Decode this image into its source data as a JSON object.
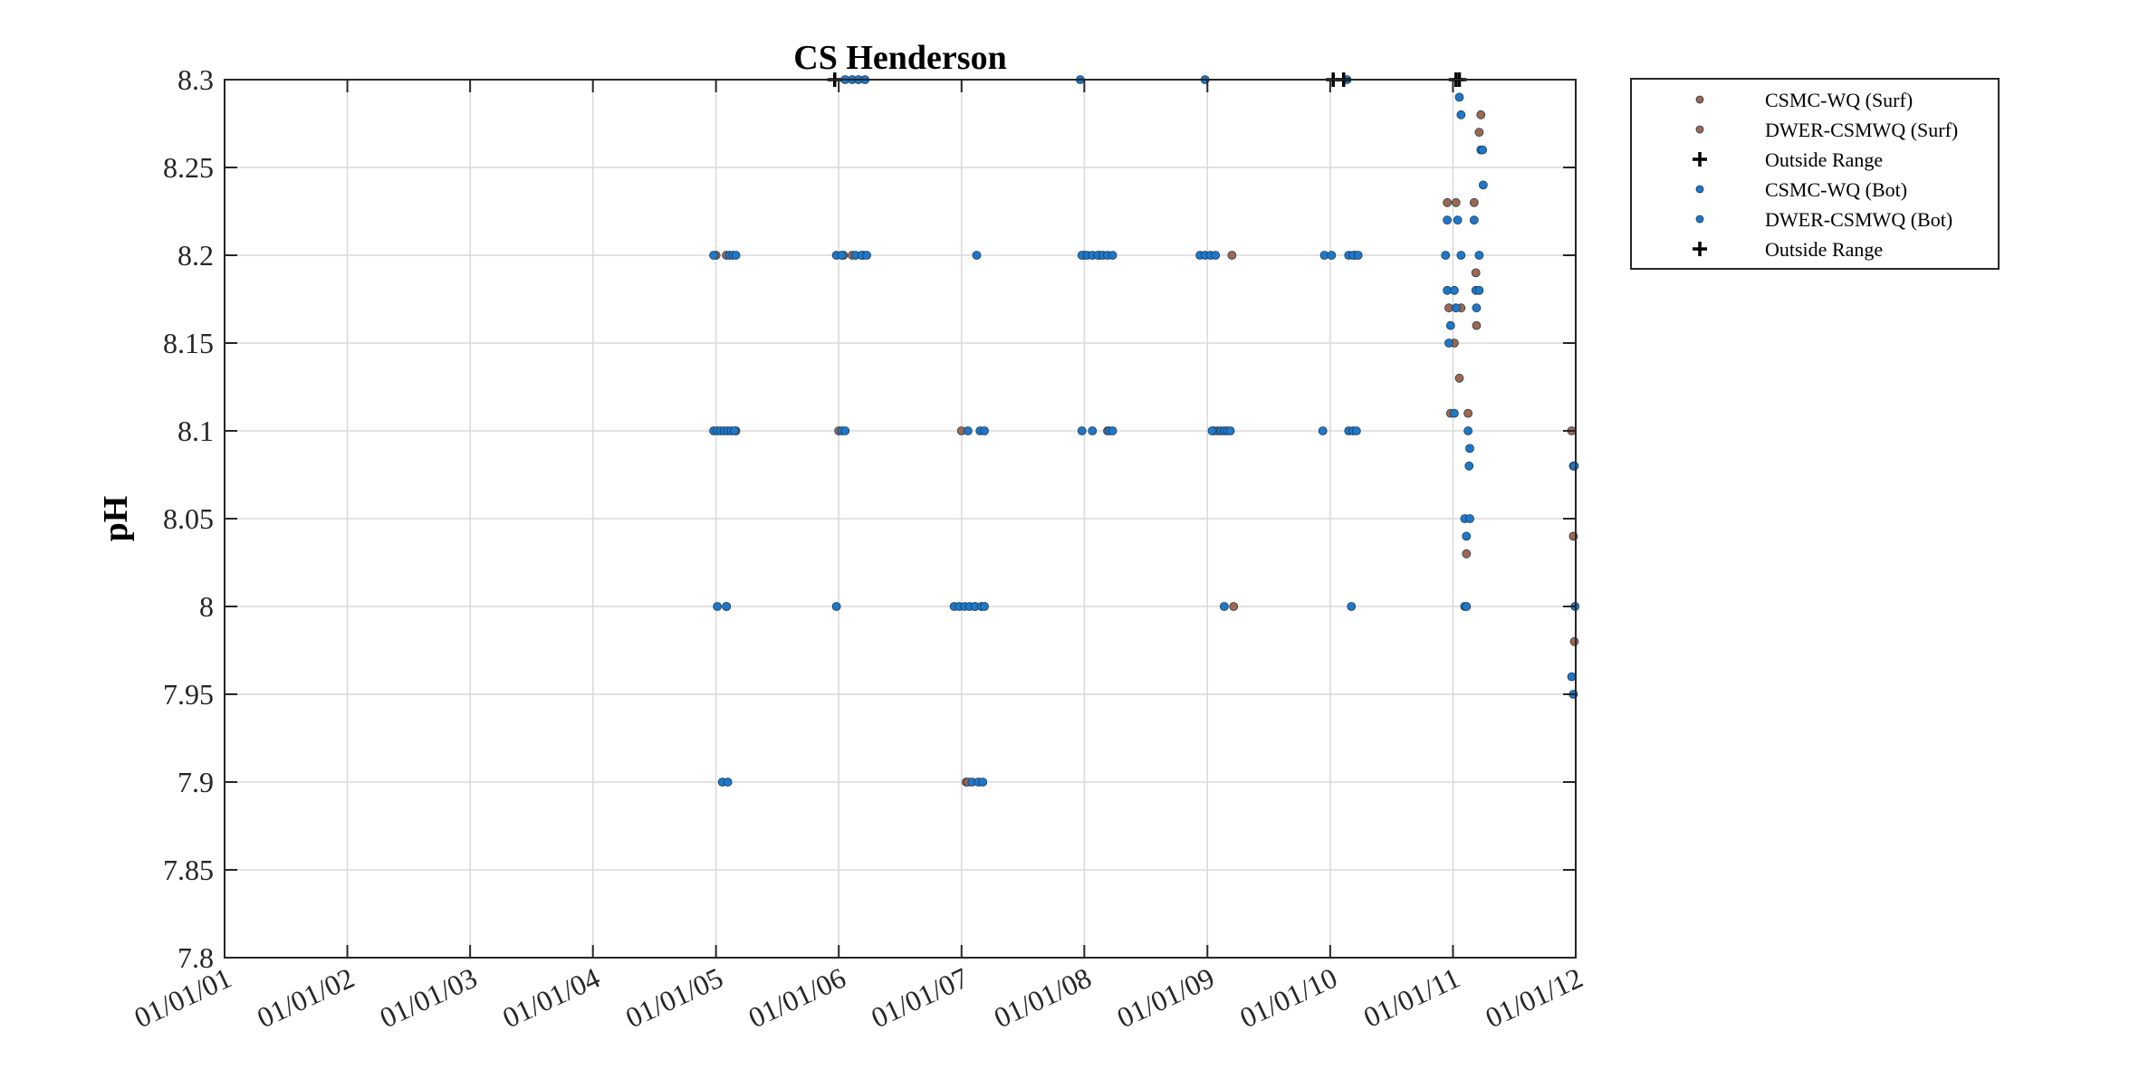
{
  "chart_data": {
    "type": "scatter",
    "title": "CS Henderson",
    "xlabel": "",
    "ylabel": "pH",
    "ylim": [
      7.8,
      8.3
    ],
    "xlim": [
      "2001-01-01",
      "2012-01-01"
    ],
    "grid": true,
    "legend_position": "outside-top-right",
    "y_ticks": [
      "7.8",
      "7.85",
      "7.9",
      "7.95",
      "8",
      "8.05",
      "8.1",
      "8.15",
      "8.2",
      "8.25",
      "8.3"
    ],
    "y_tick_values": [
      7.8,
      7.85,
      7.9,
      7.95,
      8.0,
      8.05,
      8.1,
      8.15,
      8.2,
      8.25,
      8.3
    ],
    "x_ticks": [
      "01/01/01",
      "01/01/02",
      "01/01/03",
      "01/01/04",
      "01/01/05",
      "01/01/06",
      "01/01/07",
      "01/01/08",
      "01/01/09",
      "01/01/10",
      "01/01/11",
      "01/01/12"
    ],
    "x_tick_values": [
      "2001-01-01",
      "2002-01-01",
      "2003-01-01",
      "2004-01-01",
      "2005-01-01",
      "2006-01-01",
      "2007-01-01",
      "2008-01-01",
      "2009-01-01",
      "2010-01-01",
      "2011-01-01",
      "2012-01-01"
    ],
    "series": [
      {
        "name": "CSMC-WQ (Surf)",
        "marker": "dot",
        "color": "#a0674b",
        "points": [
          {
            "x": "2005-01-01",
            "y": 8.2
          },
          {
            "x": "2005-02-01",
            "y": 8.2
          },
          {
            "x": "2005-03-01",
            "y": 8.1
          },
          {
            "x": "2005-02-01",
            "y": 8.0
          },
          {
            "x": "2006-01-15",
            "y": 8.2
          },
          {
            "x": "2006-02-10",
            "y": 8.2
          },
          {
            "x": "2006-03-15",
            "y": 8.2
          },
          {
            "x": "2006-01-01",
            "y": 8.1
          },
          {
            "x": "2007-01-01",
            "y": 8.1
          },
          {
            "x": "2007-01-15",
            "y": 7.9
          },
          {
            "x": "2007-02-10",
            "y": 8.0
          },
          {
            "x": "2008-01-01",
            "y": 8.2
          },
          {
            "x": "2008-02-15",
            "y": 8.2
          },
          {
            "x": "2008-03-10",
            "y": 8.1
          },
          {
            "x": "2009-03-15",
            "y": 8.2
          },
          {
            "x": "2009-02-01",
            "y": 8.1
          },
          {
            "x": "2009-03-20",
            "y": 8.0
          },
          {
            "x": "2010-03-15",
            "y": 8.2
          },
          {
            "x": "2010-12-15",
            "y": 8.23
          },
          {
            "x": "2011-01-10",
            "y": 8.23
          },
          {
            "x": "2010-12-20",
            "y": 8.17
          },
          {
            "x": "2011-01-05",
            "y": 8.15
          },
          {
            "x": "2010-12-25",
            "y": 8.11
          },
          {
            "x": "2011-01-20",
            "y": 8.13
          },
          {
            "x": "2011-02-15",
            "y": 8.11
          },
          {
            "x": "2011-02-10",
            "y": 8.03
          },
          {
            "x": "2011-03-05",
            "y": 8.23
          },
          {
            "x": "2011-03-10",
            "y": 8.19
          },
          {
            "x": "2011-03-12",
            "y": 8.16
          },
          {
            "x": "2011-03-20",
            "y": 8.27
          },
          {
            "x": "2011-03-25",
            "y": 8.28
          },
          {
            "x": "2011-12-20",
            "y": 8.1
          },
          {
            "x": "2011-12-25",
            "y": 8.04
          },
          {
            "x": "2011-12-28",
            "y": 7.98
          }
        ]
      },
      {
        "name": "DWER-CSMWQ (Surf)",
        "marker": "dot",
        "color": "#a0674b",
        "points": [
          {
            "x": "2007-01-20",
            "y": 7.9
          },
          {
            "x": "2009-01-20",
            "y": 8.1
          },
          {
            "x": "2011-01-25",
            "y": 8.17
          }
        ]
      },
      {
        "name": "Outside Range",
        "marker": "plus",
        "color": "#000000",
        "points": [
          {
            "x": "2005-12-20",
            "y": 8.3
          },
          {
            "x": "2010-01-10",
            "y": 8.3
          },
          {
            "x": "2010-02-10",
            "y": 8.3
          }
        ]
      },
      {
        "name": "CSMC-WQ (Bot)",
        "marker": "dot",
        "color": "#1f77c8",
        "points": [
          {
            "x": "2004-12-25",
            "y": 8.1
          },
          {
            "x": "2005-01-05",
            "y": 8.1
          },
          {
            "x": "2005-01-15",
            "y": 8.1
          },
          {
            "x": "2005-01-25",
            "y": 8.1
          },
          {
            "x": "2005-02-05",
            "y": 8.1
          },
          {
            "x": "2005-02-15",
            "y": 8.1
          },
          {
            "x": "2005-02-25",
            "y": 8.1
          },
          {
            "x": "2004-12-25",
            "y": 8.2
          },
          {
            "x": "2005-02-10",
            "y": 8.2
          },
          {
            "x": "2005-02-20",
            "y": 8.2
          },
          {
            "x": "2005-03-01",
            "y": 8.2
          },
          {
            "x": "2005-01-05",
            "y": 8.0
          },
          {
            "x": "2005-02-01",
            "y": 8.0
          },
          {
            "x": "2005-01-20",
            "y": 7.9
          },
          {
            "x": "2005-02-05",
            "y": 7.9
          },
          {
            "x": "2005-12-25",
            "y": 8.2
          },
          {
            "x": "2006-01-10",
            "y": 8.2
          },
          {
            "x": "2006-02-20",
            "y": 8.2
          },
          {
            "x": "2006-03-10",
            "y": 8.2
          },
          {
            "x": "2006-03-25",
            "y": 8.2
          },
          {
            "x": "2006-01-10",
            "y": 8.1
          },
          {
            "x": "2006-01-20",
            "y": 8.1
          },
          {
            "x": "2005-12-25",
            "y": 8.0
          },
          {
            "x": "2006-01-20",
            "y": 8.3
          },
          {
            "x": "2006-02-10",
            "y": 8.3
          },
          {
            "x": "2006-03-01",
            "y": 8.3
          },
          {
            "x": "2006-03-20",
            "y": 8.3
          },
          {
            "x": "2006-12-10",
            "y": 8.0
          },
          {
            "x": "2006-12-25",
            "y": 8.0
          },
          {
            "x": "2007-01-10",
            "y": 8.0
          },
          {
            "x": "2007-01-25",
            "y": 8.0
          },
          {
            "x": "2007-02-10",
            "y": 8.0
          },
          {
            "x": "2007-03-01",
            "y": 8.0
          },
          {
            "x": "2007-03-10",
            "y": 8.0
          },
          {
            "x": "2007-02-15",
            "y": 8.2
          },
          {
            "x": "2007-01-20",
            "y": 8.1
          },
          {
            "x": "2007-02-25",
            "y": 8.1
          },
          {
            "x": "2007-03-10",
            "y": 8.1
          },
          {
            "x": "2007-02-01",
            "y": 7.9
          },
          {
            "x": "2007-02-20",
            "y": 7.9
          },
          {
            "x": "2007-03-05",
            "y": 7.9
          },
          {
            "x": "2007-12-25",
            "y": 8.2
          },
          {
            "x": "2008-01-10",
            "y": 8.2
          },
          {
            "x": "2008-01-25",
            "y": 8.2
          },
          {
            "x": "2008-02-10",
            "y": 8.2
          },
          {
            "x": "2008-02-25",
            "y": 8.2
          },
          {
            "x": "2008-03-10",
            "y": 8.2
          },
          {
            "x": "2008-03-25",
            "y": 8.2
          },
          {
            "x": "2007-12-25",
            "y": 8.1
          },
          {
            "x": "2008-01-25",
            "y": 8.1
          },
          {
            "x": "2008-03-15",
            "y": 8.1
          },
          {
            "x": "2008-03-25",
            "y": 8.1
          },
          {
            "x": "2007-12-20",
            "y": 8.3
          },
          {
            "x": "2008-12-10",
            "y": 8.2
          },
          {
            "x": "2008-12-25",
            "y": 8.2
          },
          {
            "x": "2009-01-10",
            "y": 8.2
          },
          {
            "x": "2009-01-25",
            "y": 8.2
          },
          {
            "x": "2009-02-10",
            "y": 8.1
          },
          {
            "x": "2009-02-20",
            "y": 8.1
          },
          {
            "x": "2009-03-01",
            "y": 8.1
          },
          {
            "x": "2009-03-10",
            "y": 8.1
          },
          {
            "x": "2009-02-20",
            "y": 8.0
          },
          {
            "x": "2008-12-25",
            "y": 8.3
          },
          {
            "x": "2009-12-15",
            "y": 8.2
          },
          {
            "x": "2010-01-05",
            "y": 8.2
          },
          {
            "x": "2010-02-25",
            "y": 8.2
          },
          {
            "x": "2010-03-10",
            "y": 8.2
          },
          {
            "x": "2010-03-25",
            "y": 8.2
          },
          {
            "x": "2009-12-10",
            "y": 8.1
          },
          {
            "x": "2010-02-25",
            "y": 8.1
          },
          {
            "x": "2010-03-10",
            "y": 8.1
          },
          {
            "x": "2010-03-20",
            "y": 8.1
          },
          {
            "x": "2010-03-05",
            "y": 8.0
          },
          {
            "x": "2010-02-20",
            "y": 8.3
          },
          {
            "x": "2010-12-10",
            "y": 8.2
          },
          {
            "x": "2010-12-15",
            "y": 8.22
          },
          {
            "x": "2011-01-15",
            "y": 8.22
          },
          {
            "x": "2010-12-15",
            "y": 8.18
          },
          {
            "x": "2011-01-05",
            "y": 8.18
          },
          {
            "x": "2010-12-25",
            "y": 8.16
          },
          {
            "x": "2010-12-20",
            "y": 8.15
          },
          {
            "x": "2011-01-10",
            "y": 8.17
          },
          {
            "x": "2011-01-05",
            "y": 8.11
          },
          {
            "x": "2011-01-20",
            "y": 8.29
          },
          {
            "x": "2011-01-25",
            "y": 8.28
          },
          {
            "x": "2011-02-15",
            "y": 8.1
          },
          {
            "x": "2011-02-20",
            "y": 8.09
          },
          {
            "x": "2011-02-18",
            "y": 8.08
          },
          {
            "x": "2011-02-05",
            "y": 8.05
          },
          {
            "x": "2011-02-20",
            "y": 8.05
          },
          {
            "x": "2011-02-10",
            "y": 8.04
          },
          {
            "x": "2011-02-05",
            "y": 8.0
          },
          {
            "x": "2011-02-10",
            "y": 8.0
          },
          {
            "x": "2011-03-05",
            "y": 8.22
          },
          {
            "x": "2011-03-20",
            "y": 8.2
          },
          {
            "x": "2011-03-10",
            "y": 8.18
          },
          {
            "x": "2011-03-20",
            "y": 8.18
          },
          {
            "x": "2011-03-12",
            "y": 8.17
          },
          {
            "x": "2011-03-25",
            "y": 8.26
          },
          {
            "x": "2011-03-30",
            "y": 8.26
          },
          {
            "x": "2011-04-01",
            "y": 8.24
          },
          {
            "x": "2011-12-25",
            "y": 8.08
          },
          {
            "x": "2011-12-28",
            "y": 8.08
          },
          {
            "x": "2011-12-30",
            "y": 8.0
          },
          {
            "x": "2011-12-20",
            "y": 7.96
          },
          {
            "x": "2011-12-25",
            "y": 7.95
          }
        ]
      },
      {
        "name": "DWER-CSMWQ (Bot)",
        "marker": "dot",
        "color": "#1f77c8",
        "points": [
          {
            "x": "2009-01-15",
            "y": 8.1
          },
          {
            "x": "2011-01-25",
            "y": 8.2
          }
        ]
      },
      {
        "name": "Outside Range",
        "marker": "plus",
        "color": "#000000",
        "points": [
          {
            "x": "2011-01-10",
            "y": 8.3
          },
          {
            "x": "2011-01-20",
            "y": 8.3
          }
        ]
      }
    ]
  }
}
